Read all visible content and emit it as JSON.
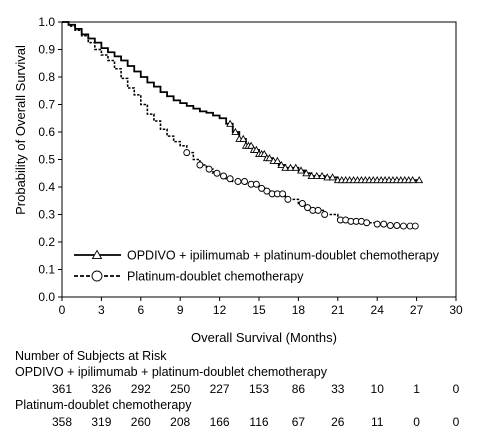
{
  "chart_data": {
    "type": "line",
    "subtype": "kaplan-meier",
    "xlabel": "Overall Survival (Months)",
    "ylabel": "Probability of Overall Survival",
    "xlim": [
      0,
      30
    ],
    "ylim": [
      0.0,
      1.0
    ],
    "x_ticks": [
      "0",
      "3",
      "6",
      "9",
      "12",
      "15",
      "18",
      "21",
      "24",
      "27",
      "30"
    ],
    "y_ticks": [
      "0.0",
      "0.1",
      "0.2",
      "0.3",
      "0.4",
      "0.5",
      "0.6",
      "0.7",
      "0.8",
      "0.9",
      "1.0"
    ],
    "legend_position": "bottom-left",
    "series": [
      {
        "name": "OPDIVO + ipilimumab + platinum-doublet chemotherapy",
        "line_style": "solid",
        "marker": "triangle",
        "color": "#000000",
        "points": [
          [
            0,
            1.0
          ],
          [
            0.5,
            0.99
          ],
          [
            1.0,
            0.975
          ],
          [
            1.5,
            0.955
          ],
          [
            2,
            0.94
          ],
          [
            2.5,
            0.925
          ],
          [
            3,
            0.905
          ],
          [
            3.5,
            0.89
          ],
          [
            4,
            0.875
          ],
          [
            4.5,
            0.86
          ],
          [
            5,
            0.84
          ],
          [
            5.5,
            0.82
          ],
          [
            6,
            0.8
          ],
          [
            6.5,
            0.78
          ],
          [
            7,
            0.765
          ],
          [
            7.5,
            0.745
          ],
          [
            8,
            0.73
          ],
          [
            8.5,
            0.715
          ],
          [
            9,
            0.705
          ],
          [
            9.5,
            0.695
          ],
          [
            10,
            0.685
          ],
          [
            10.5,
            0.675
          ],
          [
            11,
            0.67
          ],
          [
            11.5,
            0.66
          ],
          [
            12,
            0.65
          ],
          [
            12.5,
            0.63
          ],
          [
            13,
            0.6
          ],
          [
            13.5,
            0.575
          ],
          [
            14,
            0.55
          ],
          [
            14.5,
            0.535
          ],
          [
            15,
            0.52
          ],
          [
            15.5,
            0.505
          ],
          [
            16,
            0.495
          ],
          [
            16.5,
            0.48
          ],
          [
            17,
            0.47
          ],
          [
            18,
            0.46
          ],
          [
            18.5,
            0.45
          ],
          [
            19,
            0.44
          ],
          [
            20,
            0.435
          ],
          [
            21,
            0.425
          ],
          [
            22,
            0.425
          ],
          [
            23,
            0.425
          ],
          [
            24,
            0.425
          ],
          [
            25,
            0.425
          ],
          [
            26,
            0.425
          ],
          [
            27.2,
            0.425
          ]
        ],
        "censor_months": [
          12.8,
          13.2,
          13.5,
          13.8,
          14.0,
          14.2,
          14.4,
          14.6,
          14.8,
          15.0,
          15.2,
          15.4,
          15.6,
          15.8,
          16.1,
          16.4,
          16.7,
          17.0,
          17.4,
          17.8,
          18.2,
          18.6,
          19.0,
          19.4,
          19.8,
          20.2,
          20.6,
          21.0,
          21.3,
          21.6,
          21.9,
          22.2,
          22.5,
          22.8,
          23.1,
          23.4,
          23.7,
          24.0,
          24.3,
          24.6,
          24.9,
          25.2,
          25.5,
          25.8,
          26.1,
          26.4,
          26.7,
          27.2
        ]
      },
      {
        "name": "Platinum-doublet chemotherapy",
        "line_style": "dashed",
        "marker": "circle",
        "color": "#000000",
        "points": [
          [
            0,
            1.0
          ],
          [
            0.5,
            0.985
          ],
          [
            1.0,
            0.97
          ],
          [
            1.5,
            0.95
          ],
          [
            2,
            0.925
          ],
          [
            2.5,
            0.9
          ],
          [
            3,
            0.88
          ],
          [
            3.5,
            0.86
          ],
          [
            4,
            0.83
          ],
          [
            4.5,
            0.795
          ],
          [
            5,
            0.76
          ],
          [
            5.5,
            0.735
          ],
          [
            6,
            0.7
          ],
          [
            6.5,
            0.665
          ],
          [
            7,
            0.64
          ],
          [
            7.5,
            0.61
          ],
          [
            8,
            0.585
          ],
          [
            8.5,
            0.565
          ],
          [
            9,
            0.55
          ],
          [
            9.5,
            0.525
          ],
          [
            10,
            0.5
          ],
          [
            10.5,
            0.48
          ],
          [
            11,
            0.465
          ],
          [
            11.5,
            0.45
          ],
          [
            12,
            0.44
          ],
          [
            12.5,
            0.43
          ],
          [
            13,
            0.42
          ],
          [
            14,
            0.41
          ],
          [
            15,
            0.395
          ],
          [
            15.5,
            0.385
          ],
          [
            16,
            0.375
          ],
          [
            17,
            0.355
          ],
          [
            18,
            0.34
          ],
          [
            18.5,
            0.325
          ],
          [
            19,
            0.315
          ],
          [
            20,
            0.3
          ],
          [
            21,
            0.28
          ],
          [
            22,
            0.275
          ],
          [
            23,
            0.27
          ],
          [
            24,
            0.265
          ],
          [
            25,
            0.26
          ],
          [
            26,
            0.258
          ],
          [
            27,
            0.258
          ]
        ],
        "censor_months": [
          9.5,
          10.5,
          11.2,
          11.8,
          12.3,
          12.8,
          13.4,
          13.9,
          14.4,
          14.8,
          15.2,
          15.6,
          16.0,
          16.4,
          16.8,
          17.2,
          18.3,
          18.7,
          19.1,
          19.5,
          20.0,
          21.2,
          21.6,
          22.0,
          22.4,
          22.8,
          23.2,
          24.0,
          24.5,
          25.0,
          25.5,
          26.0,
          26.5,
          26.9
        ]
      }
    ],
    "risk_table": {
      "title": "Number of Subjects at Risk",
      "times": [
        "0",
        "3",
        "6",
        "9",
        "12",
        "15",
        "18",
        "21",
        "24",
        "27",
        "30"
      ],
      "rows": [
        {
          "label": "OPDIVO + ipilimumab + platinum-doublet chemotherapy",
          "values": [
            "361",
            "326",
            "292",
            "250",
            "227",
            "153",
            "86",
            "33",
            "10",
            "1",
            "0"
          ]
        },
        {
          "label": "Platinum-doublet chemotherapy",
          "values": [
            "358",
            "319",
            "260",
            "208",
            "166",
            "116",
            "67",
            "26",
            "11",
            "0",
            "0"
          ]
        }
      ]
    }
  }
}
